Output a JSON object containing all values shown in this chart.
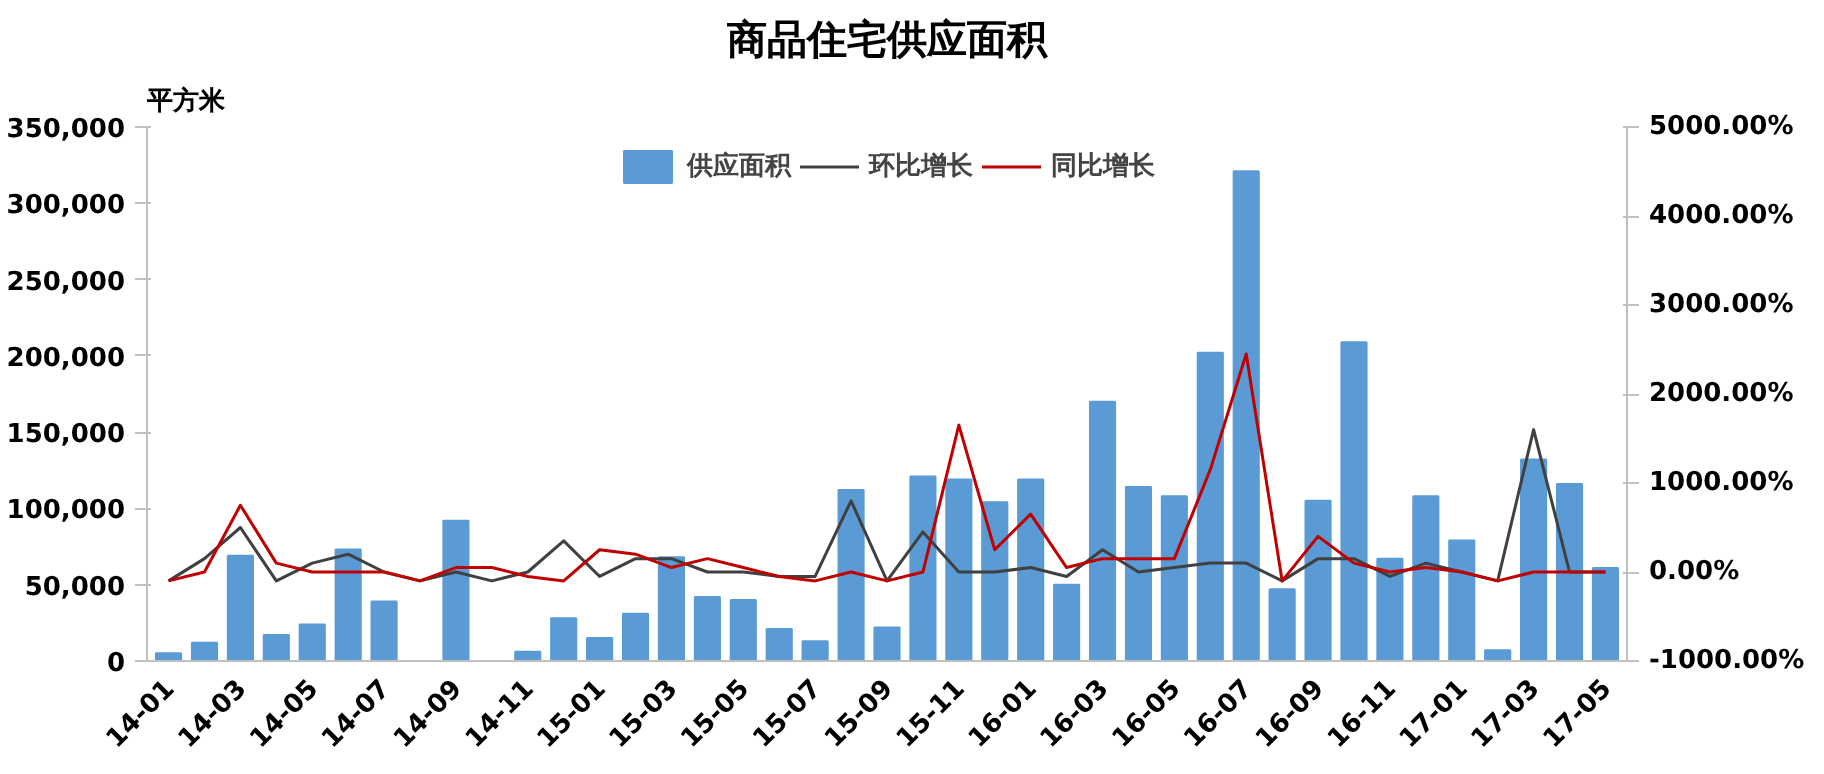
{
  "chart_data": {
    "type": "bar",
    "title": "商品住宅供应面积",
    "ylabel": "平方米",
    "categories": [
      "14-01",
      null,
      "14-03",
      null,
      "14-05",
      null,
      "14-07",
      null,
      "14-09",
      null,
      "14-11",
      null,
      "15-01",
      null,
      "15-03",
      null,
      "15-05",
      null,
      "15-07",
      null,
      "15-09",
      null,
      "15-11",
      null,
      "16-01",
      null,
      "16-03",
      null,
      "16-05",
      null,
      "16-07",
      null,
      "16-09",
      null,
      "16-11",
      null,
      "17-01",
      null,
      "17-03",
      null,
      "17-05"
    ],
    "series": [
      {
        "name": "供应面积",
        "color": "#5b9bd5",
        "values": [
          5000,
          12000,
          69000,
          17000,
          24000,
          73000,
          39000,
          0,
          92000,
          0,
          6000,
          28000,
          15000,
          31000,
          68000,
          42000,
          40000,
          21000,
          13000,
          112000,
          22000,
          121000,
          119000,
          104000,
          119000,
          50000,
          170000,
          114000,
          108000,
          202000,
          321000,
          47000,
          105000,
          209000,
          67000,
          108000,
          79000,
          7000,
          132000,
          116000,
          61000
        ]
      },
      {
        "name": "环比增长",
        "type": "line",
        "axis": "y2",
        "color": "#404040",
        "values": [
          -100,
          150,
          500,
          -100,
          100,
          200,
          0,
          -100,
          0,
          -100,
          0,
          350,
          -50,
          150,
          150,
          0,
          0,
          -50,
          -50,
          800,
          -100,
          450,
          0,
          0,
          50,
          -50,
          250,
          0,
          50,
          100,
          100,
          -100,
          150,
          150,
          -50,
          100,
          0,
          -100,
          1600,
          0,
          0
        ]
      },
      {
        "name": "同比增长",
        "type": "line",
        "axis": "y2",
        "color": "#c00000",
        "values": [
          -100,
          0,
          750,
          100,
          0,
          0,
          0,
          -100,
          50,
          50,
          -50,
          -100,
          250,
          200,
          50,
          150,
          50,
          -50,
          -100,
          0,
          -100,
          0,
          1650,
          250,
          650,
          50,
          150,
          150,
          150,
          1150,
          2450,
          -100,
          400,
          100,
          0,
          50,
          0,
          -100,
          0,
          0,
          0
        ]
      }
    ],
    "ylim": [
      0,
      350000
    ],
    "yticks": [
      0,
      {
        "value": 50000,
        "label": "50,000"
      },
      {
        "value": 100000,
        "label": "100,000"
      },
      {
        "value": 150000,
        "label": "150,000"
      },
      {
        "value": 200000,
        "label": "200,000"
      },
      {
        "value": 250000,
        "label": "250,000"
      },
      {
        "value": 300000,
        "label": "300,000"
      },
      {
        "value": 350000,
        "label": "350,000"
      }
    ],
    "y2lim": [
      -1000,
      5000
    ],
    "y2ticks": [
      {
        "value": -1000,
        "label": "-1000.00%"
      },
      {
        "value": 0,
        "label": "0.00%"
      },
      {
        "value": 1000,
        "label": "1000.00%"
      },
      {
        "value": 2000,
        "label": "2000.00%"
      },
      {
        "value": 3000,
        "label": "3000.00%"
      },
      {
        "value": 4000,
        "label": "4000.00%"
      },
      {
        "value": 5000,
        "label": "5000.00%"
      }
    ],
    "legend": "top",
    "grid": false
  }
}
